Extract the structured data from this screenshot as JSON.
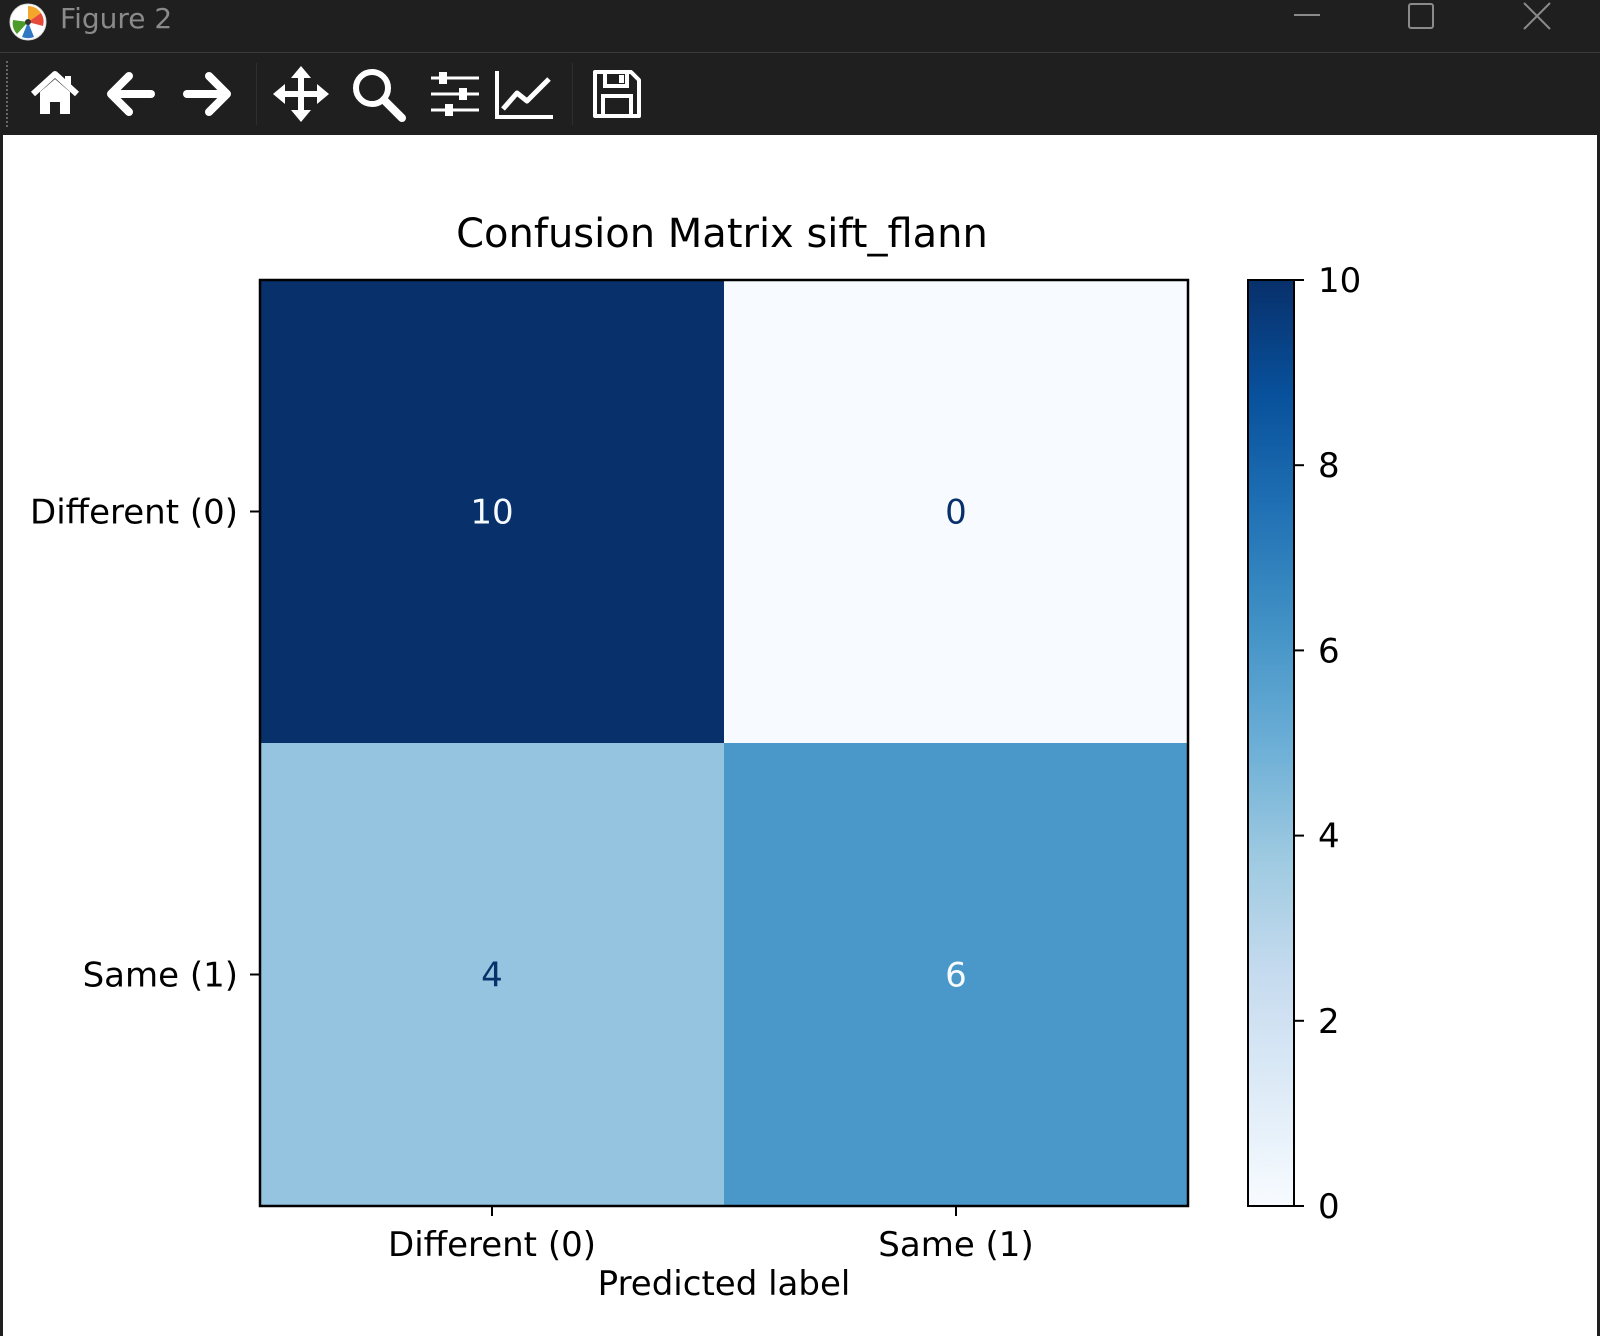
{
  "window": {
    "title": "Figure 2"
  },
  "toolbar": {
    "buttons": [
      {
        "icon": "home-icon",
        "label": "Home"
      },
      {
        "icon": "back-icon",
        "label": "Back"
      },
      {
        "icon": "forward-icon",
        "label": "Forward"
      },
      {
        "icon": "pan-icon",
        "label": "Pan"
      },
      {
        "icon": "zoom-icon",
        "label": "Zoom"
      },
      {
        "icon": "subplots-icon",
        "label": "Subplots"
      },
      {
        "icon": "customize-icon",
        "label": "Customize"
      },
      {
        "icon": "save-icon",
        "label": "Save"
      }
    ]
  },
  "colors": {
    "chrome": "#1f1f1f",
    "cmap_low": "#f7fbff",
    "cmap_high": "#08306b",
    "text_dark": "#08306b",
    "text_light": "#f7fbff"
  },
  "chart_data": {
    "type": "heatmap",
    "title": "Confusion Matrix sift_flann",
    "xlabel": "Predicted label",
    "ylabel": "",
    "x_categories": [
      "Different (0)",
      "Same (1)"
    ],
    "y_categories": [
      "Different (0)",
      "Same (1)"
    ],
    "values": [
      [
        10,
        0
      ],
      [
        4,
        6
      ]
    ],
    "colormap": "Blues",
    "colorbar": {
      "min": 0,
      "max": 10,
      "ticks": [
        0,
        2,
        4,
        6,
        8,
        10
      ]
    }
  }
}
